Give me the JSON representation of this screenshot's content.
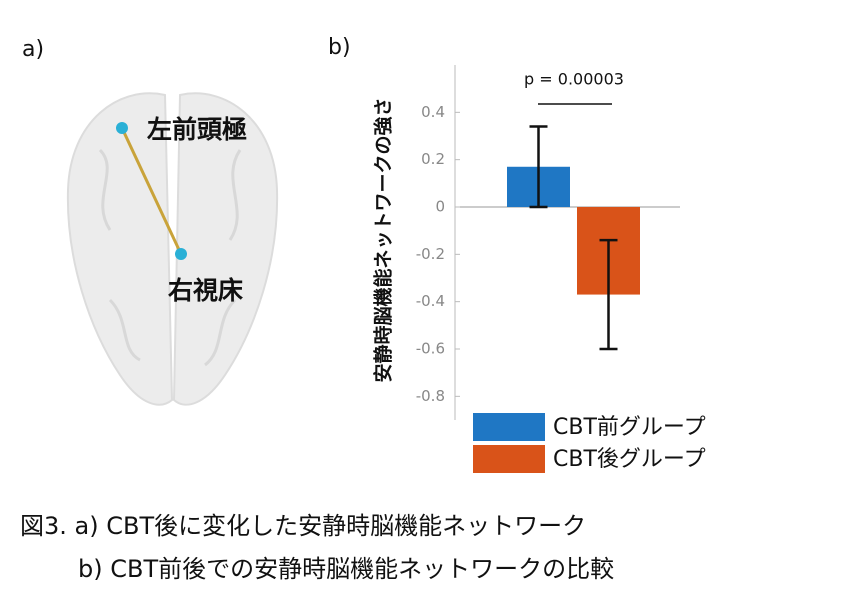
{
  "panel_a": {
    "label": "a)",
    "nodes": [
      {
        "label": "左前頭極"
      },
      {
        "label": "右視床"
      }
    ]
  },
  "chart_data": {
    "type": "bar",
    "panel_label": "b)",
    "ylabel": "安静時脳機能ネットワークの強さ",
    "annotation": "p = 0.00003",
    "categories": [
      null
    ],
    "series": [
      {
        "name": "CBT前グループ",
        "color": "#1f77c4",
        "values": [
          0.17
        ],
        "errors": [
          0.17
        ]
      },
      {
        "name": "CBT後グループ",
        "color": "#d95319",
        "values": [
          -0.37
        ],
        "errors": [
          0.23
        ]
      }
    ],
    "ylim": [
      -0.9,
      0.6
    ],
    "yticks": [
      -0.8,
      -0.6,
      -0.4,
      -0.2,
      0,
      0.2,
      0.4
    ],
    "legend": "bottom"
  },
  "caption": [
    "図3. a) CBT後に変化した安静時脳機能ネットワーク",
    "b) CBT前後での安静時脳機能ネットワークの比較"
  ]
}
